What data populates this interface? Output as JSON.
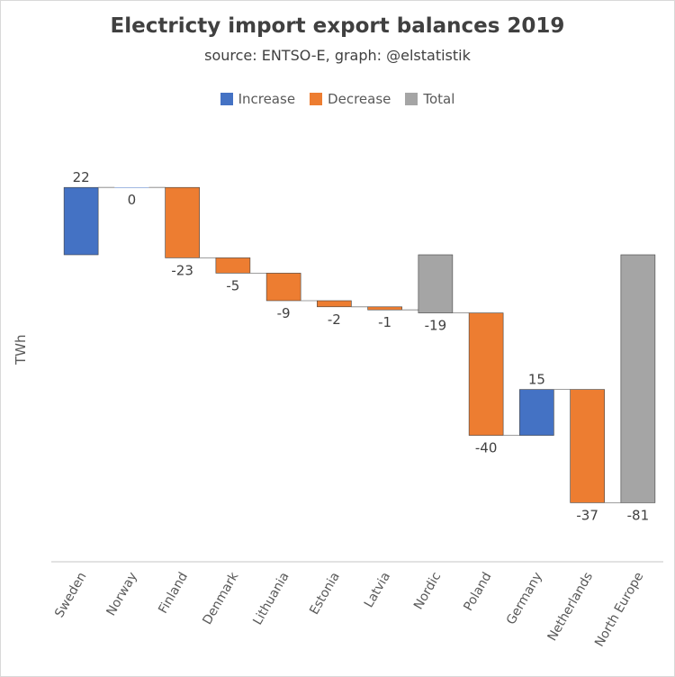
{
  "chart_data": {
    "type": "bar",
    "subtype": "waterfall",
    "title": "Electricty import export balances 2019",
    "subtitle": "source: ENTSO-E, graph: @elstatistik",
    "xlabel": "",
    "ylabel": "TWh",
    "ylim": [
      -100,
      30
    ],
    "grid": false,
    "legend_position": "top",
    "legend": [
      {
        "name": "Increase",
        "color": "#4472c4"
      },
      {
        "name": "Decrease",
        "color": "#ed7d31"
      },
      {
        "name": "Total",
        "color": "#a5a5a5"
      }
    ],
    "categories": [
      "Sweden",
      "Norway",
      "Finland",
      "Denmark",
      "Lithuania",
      "Estonia",
      "Latvia",
      "Nordic",
      "Poland",
      "Germany",
      "Netherlands",
      "North Europe"
    ],
    "values": [
      22,
      0,
      -23,
      -5,
      -9,
      -2,
      -1,
      -19,
      -40,
      15,
      -37,
      -81
    ],
    "is_total": [
      false,
      false,
      false,
      false,
      false,
      false,
      false,
      true,
      false,
      false,
      false,
      true
    ]
  }
}
